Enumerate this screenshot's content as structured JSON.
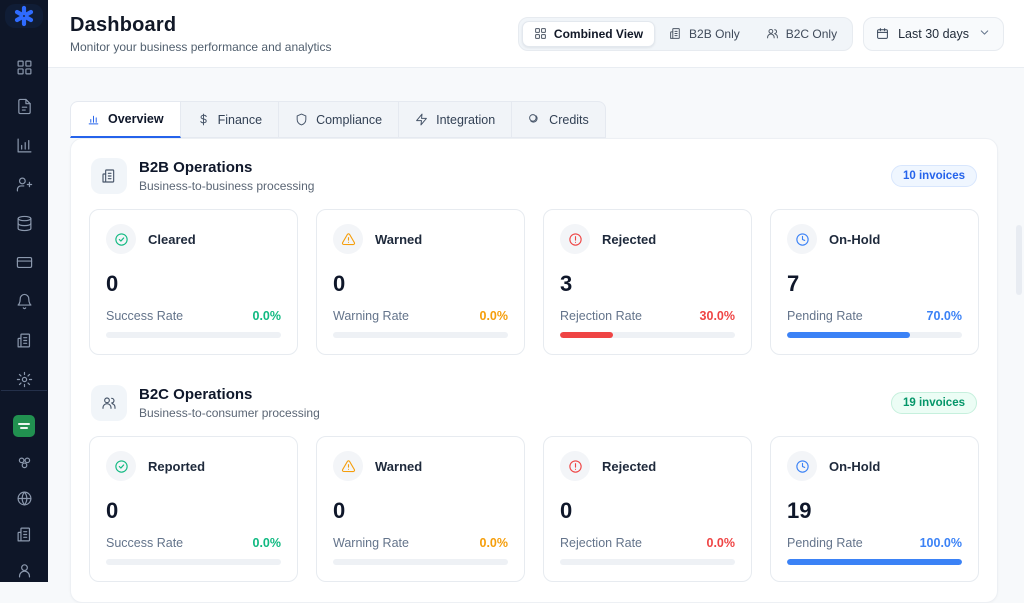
{
  "colors": {
    "accent": "#2563eb",
    "success": "#10b981",
    "warning": "#f59e0b",
    "danger": "#ef4444",
    "info": "#3b82f6",
    "sidebar_bg": "#0e1628",
    "flag_green": "#219150"
  },
  "sidebar": {
    "logo": "asterisk-logo",
    "primary_icons": [
      "dashboard-grid",
      "document",
      "analytics-chart",
      "user-plus",
      "database",
      "credit-card",
      "bell",
      "building",
      "settings-gear"
    ],
    "secondary_icons": [
      "saudi-flag",
      "modules-cluster",
      "globe",
      "building",
      "user"
    ]
  },
  "header": {
    "title": "Dashboard",
    "subtitle": "Monitor your business performance and analytics",
    "view_toggle": {
      "combined": "Combined View",
      "b2b": "B2B Only",
      "b2c": "B2C Only",
      "active": "Combined View"
    },
    "date_range": "Last 30 days"
  },
  "tabs": {
    "overview": "Overview",
    "finance": "Finance",
    "compliance": "Compliance",
    "integration": "Integration",
    "credits": "Credits",
    "active": "Overview"
  },
  "sections": [
    {
      "title": "B2B Operations",
      "subtitle": "Business-to-business processing",
      "badge": "10 invoices",
      "badge_color": "blue",
      "cards": [
        {
          "label": "Cleared",
          "icon": "check-circle",
          "value": "0",
          "rate_label": "Success Rate",
          "rate": "0.0%",
          "progress": 0,
          "color": "#10b981"
        },
        {
          "label": "Warned",
          "icon": "alert-triangle",
          "value": "0",
          "rate_label": "Warning Rate",
          "rate": "0.0%",
          "progress": 0,
          "color": "#f59e0b"
        },
        {
          "label": "Rejected",
          "icon": "alert-circle",
          "value": "3",
          "rate_label": "Rejection Rate",
          "rate": "30.0%",
          "progress": 30,
          "color": "#ef4444"
        },
        {
          "label": "On-Hold",
          "icon": "clock",
          "value": "7",
          "rate_label": "Pending Rate",
          "rate": "70.0%",
          "progress": 70,
          "color": "#3b82f6"
        }
      ]
    },
    {
      "title": "B2C Operations",
      "subtitle": "Business-to-consumer processing",
      "badge": "19 invoices",
      "badge_color": "green",
      "cards": [
        {
          "label": "Reported",
          "icon": "check-circle",
          "value": "0",
          "rate_label": "Success Rate",
          "rate": "0.0%",
          "progress": 0,
          "color": "#10b981"
        },
        {
          "label": "Warned",
          "icon": "alert-triangle",
          "value": "0",
          "rate_label": "Warning Rate",
          "rate": "0.0%",
          "progress": 0,
          "color": "#f59e0b"
        },
        {
          "label": "Rejected",
          "icon": "alert-circle",
          "value": "0",
          "rate_label": "Rejection Rate",
          "rate": "0.0%",
          "progress": 0,
          "color": "#ef4444"
        },
        {
          "label": "On-Hold",
          "icon": "clock",
          "value": "19",
          "rate_label": "Pending Rate",
          "rate": "100.0%",
          "progress": 100,
          "color": "#3b82f6"
        }
      ]
    }
  ]
}
